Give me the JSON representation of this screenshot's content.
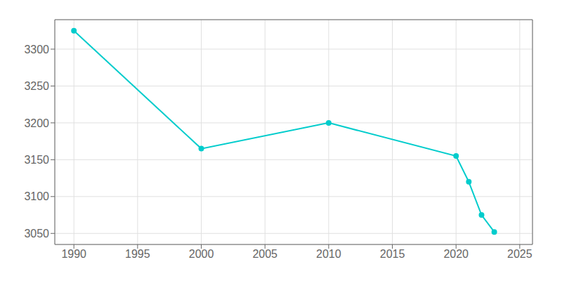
{
  "chart_data": {
    "type": "line",
    "x": [
      1990,
      2000,
      2010,
      2020,
      2021,
      2022,
      2023
    ],
    "values": [
      3325,
      3165,
      3200,
      3155,
      3120,
      3075,
      3052
    ],
    "color": "#00CCCC",
    "marker": "circle",
    "xlim": [
      1988.5,
      2026
    ],
    "ylim": [
      3035,
      3340
    ],
    "xticks": [
      1990,
      1995,
      2000,
      2005,
      2010,
      2015,
      2020,
      2025
    ],
    "yticks": [
      3050,
      3100,
      3150,
      3200,
      3250,
      3300
    ],
    "grid": true
  }
}
